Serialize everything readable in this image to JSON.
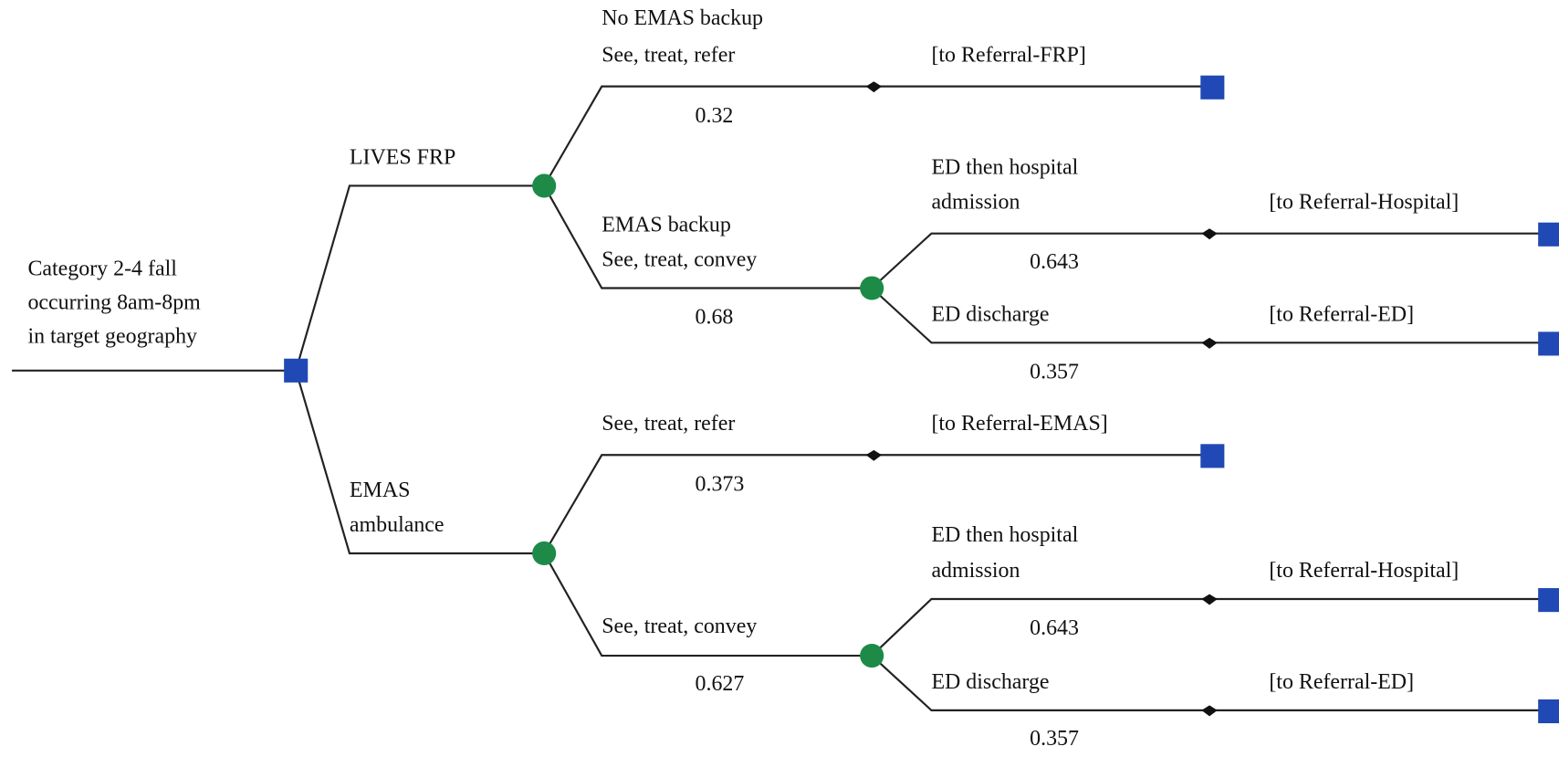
{
  "root": {
    "label": [
      "Category 2-4 fall",
      "occurring 8am-8pm",
      "in target geography"
    ]
  },
  "branches": [
    {
      "label": [
        "LIVES FRP"
      ]
    },
    {
      "label": [
        "EMAS",
        "ambulance"
      ]
    },
    {
      "label": [
        "No EMAS backup",
        "See, treat, refer"
      ],
      "probability": 0.32,
      "terminal": "[to Referral-FRP]"
    },
    {
      "label": [
        "EMAS backup",
        "See, treat, convey"
      ],
      "probability": 0.68
    },
    {
      "label": [
        "ED then hospital",
        "admission"
      ],
      "probability": 0.643,
      "terminal": "[to Referral-Hospital]"
    },
    {
      "label": [
        "ED discharge"
      ],
      "probability": 0.357,
      "terminal": "[to Referral-ED]"
    },
    {
      "label": [
        "See, treat, refer"
      ],
      "probability": 0.373,
      "terminal": "[to Referral-EMAS]"
    },
    {
      "label": [
        "See, treat, convey"
      ],
      "probability": 0.627
    },
    {
      "label": [
        "ED then hospital",
        "admission"
      ],
      "probability": 0.643,
      "terminal": "[to Referral-Hospital]"
    },
    {
      "label": [
        "ED discharge"
      ],
      "probability": 0.357,
      "terminal": "[to Referral-ED]"
    }
  ]
}
